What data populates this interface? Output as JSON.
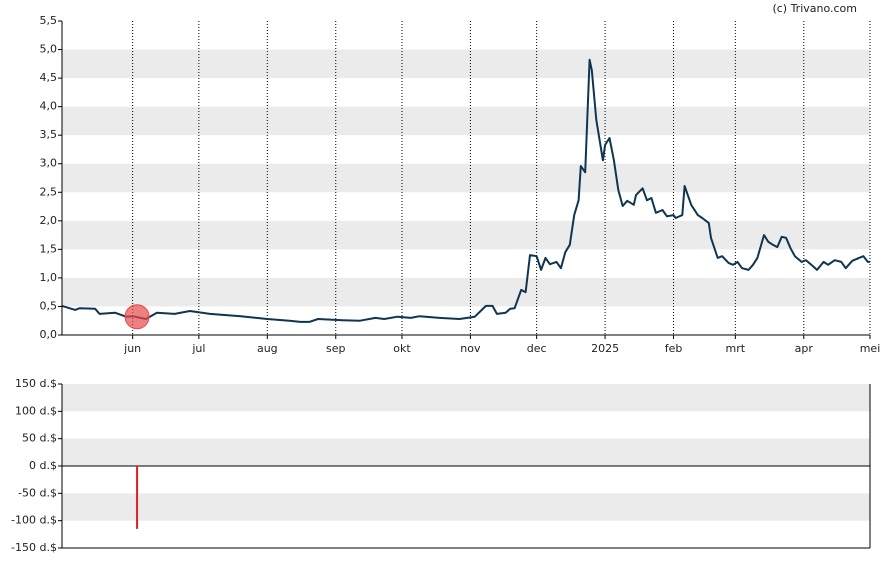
{
  "source": "(c) Trivano.com",
  "chart_data": [
    {
      "type": "line",
      "color": "#0f3551",
      "grid": true,
      "band_color": "#ebebeb",
      "xlim": [
        0,
        366
      ],
      "xticks": [
        {
          "value": 32,
          "label": "jun"
        },
        {
          "value": 62,
          "label": "jul"
        },
        {
          "value": 93,
          "label": "aug"
        },
        {
          "value": 124,
          "label": "sep"
        },
        {
          "value": 154,
          "label": "okt"
        },
        {
          "value": 185,
          "label": "nov"
        },
        {
          "value": 215,
          "label": "dec"
        },
        {
          "value": 246,
          "label": "2025"
        },
        {
          "value": 277,
          "label": "feb"
        },
        {
          "value": 305,
          "label": "mrt"
        },
        {
          "value": 336,
          "label": "apr"
        },
        {
          "value": 366,
          "label": "mei"
        }
      ],
      "ylim": [
        0,
        5.5
      ],
      "yticks": [
        {
          "value": 0,
          "label": "0,0"
        },
        {
          "value": 0.5,
          "label": "0,5"
        },
        {
          "value": 1,
          "label": "1,0"
        },
        {
          "value": 1.5,
          "label": "1,5"
        },
        {
          "value": 2,
          "label": "2,0"
        },
        {
          "value": 2.5,
          "label": "2,5"
        },
        {
          "value": 3,
          "label": "3,0"
        },
        {
          "value": 3.5,
          "label": "3,5"
        },
        {
          "value": 4,
          "label": "4,0"
        },
        {
          "value": 4.5,
          "label": "4,5"
        },
        {
          "value": 5,
          "label": "5,0"
        },
        {
          "value": 5.5,
          "label": "5,5"
        }
      ],
      "x": [
        0,
        6,
        8,
        15,
        17,
        24,
        29,
        32,
        38,
        43,
        51,
        58,
        67,
        81,
        93,
        103,
        108,
        112,
        116,
        127,
        135,
        142,
        146,
        152,
        158,
        162,
        171,
        180,
        187,
        192,
        195,
        197,
        201,
        203,
        205,
        208,
        210,
        212,
        215,
        217,
        219,
        221,
        224,
        226,
        228,
        230,
        232,
        234,
        235,
        237,
        239,
        240,
        242,
        245,
        246,
        248,
        250,
        252,
        254,
        256,
        259,
        260,
        263,
        265,
        267,
        269,
        272,
        274,
        277,
        278,
        281,
        282,
        285,
        288,
        290,
        293,
        294,
        297,
        299,
        302,
        304,
        306,
        308,
        311,
        313,
        315,
        318,
        320,
        322,
        324,
        326,
        328,
        330,
        332,
        335,
        337,
        340,
        342,
        345,
        347,
        350,
        353,
        355,
        358,
        361,
        363,
        365,
        366
      ],
      "values": [
        0.51,
        0.44,
        0.47,
        0.46,
        0.37,
        0.39,
        0.32,
        0.33,
        0.28,
        0.39,
        0.37,
        0.42,
        0.37,
        0.33,
        0.28,
        0.25,
        0.23,
        0.23,
        0.28,
        0.26,
        0.25,
        0.3,
        0.28,
        0.32,
        0.3,
        0.33,
        0.3,
        0.28,
        0.32,
        0.51,
        0.51,
        0.37,
        0.39,
        0.46,
        0.47,
        0.79,
        0.75,
        1.4,
        1.38,
        1.14,
        1.35,
        1.24,
        1.28,
        1.17,
        1.45,
        1.58,
        2.1,
        2.36,
        2.96,
        2.85,
        4.82,
        4.64,
        3.77,
        3.06,
        3.33,
        3.45,
        3.06,
        2.54,
        2.26,
        2.35,
        2.28,
        2.45,
        2.57,
        2.36,
        2.4,
        2.14,
        2.19,
        2.08,
        2.1,
        2.05,
        2.1,
        2.61,
        2.28,
        2.1,
        2.05,
        1.96,
        1.7,
        1.35,
        1.38,
        1.26,
        1.23,
        1.28,
        1.17,
        1.14,
        1.23,
        1.35,
        1.75,
        1.63,
        1.58,
        1.54,
        1.72,
        1.7,
        1.52,
        1.38,
        1.28,
        1.31,
        1.21,
        1.14,
        1.28,
        1.23,
        1.31,
        1.28,
        1.17,
        1.3,
        1.35,
        1.38,
        1.28,
        1.28
      ],
      "markers": [
        {
          "x": 34,
          "value": 0.32,
          "color": "#e84a4a"
        }
      ]
    },
    {
      "type": "bar",
      "color": "#e02020",
      "grid": false,
      "band_color": "#ebebeb",
      "xlim": [
        0,
        366
      ],
      "ylim": [
        -150,
        150
      ],
      "yticks": [
        {
          "value": -150,
          "label": "-150 d.$"
        },
        {
          "value": -100,
          "label": "-100 d.$"
        },
        {
          "value": -50,
          "label": "-50 d.$"
        },
        {
          "value": 0,
          "label": "0 d.$"
        },
        {
          "value": 50,
          "label": "50 d.$"
        },
        {
          "value": 100,
          "label": "100 d.$"
        },
        {
          "value": 150,
          "label": "150 d.$"
        }
      ],
      "x": [
        34
      ],
      "values": [
        -115
      ]
    }
  ]
}
